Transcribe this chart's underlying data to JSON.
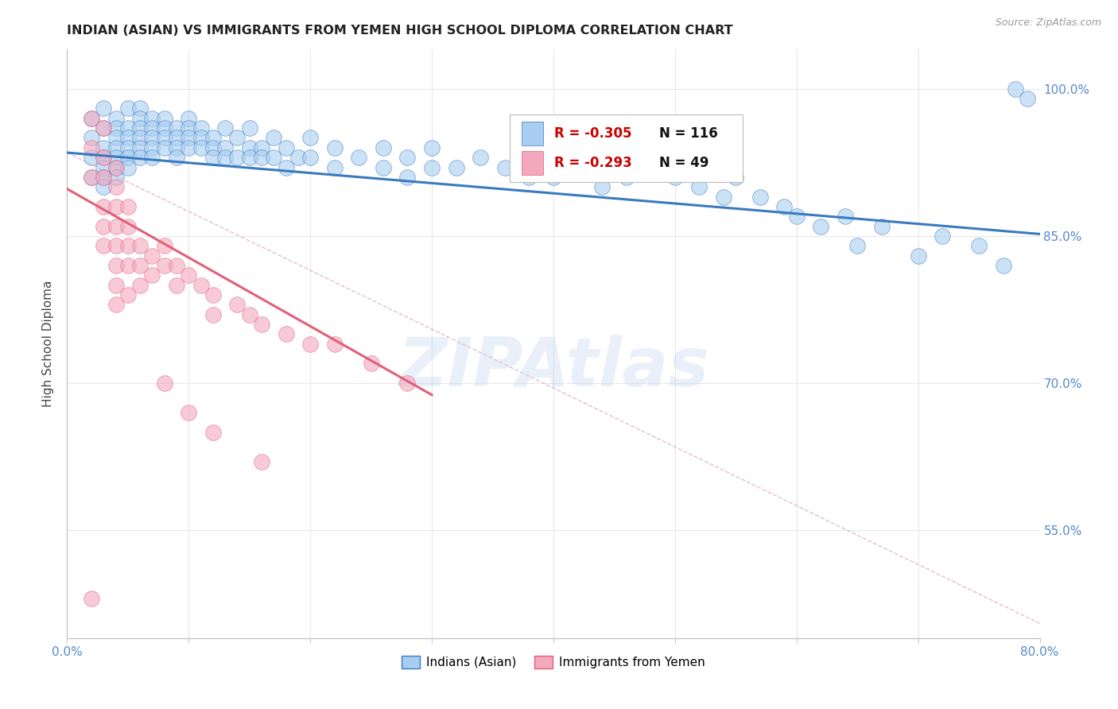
{
  "title": "INDIAN (ASIAN) VS IMMIGRANTS FROM YEMEN HIGH SCHOOL DIPLOMA CORRELATION CHART",
  "source_text": "Source: ZipAtlas.com",
  "ylabel": "High School Diploma",
  "watermark": "ZIPAtlas",
  "xlim": [
    0.0,
    0.8
  ],
  "ylim": [
    0.44,
    1.04
  ],
  "xticks": [
    0.0,
    0.1,
    0.2,
    0.3,
    0.4,
    0.5,
    0.6,
    0.7,
    0.8
  ],
  "yticks_right": [
    0.55,
    0.7,
    0.85,
    1.0
  ],
  "yticklabels_right": [
    "55.0%",
    "70.0%",
    "85.0%",
    "100.0%"
  ],
  "legend_r1": "R = -0.305",
  "legend_n1": "N = 116",
  "legend_r2": "R = -0.293",
  "legend_n2": "N = 49",
  "blue_color": "#A8CDF0",
  "pink_color": "#F4A8BE",
  "blue_line_color": "#3A7ABF",
  "pink_line_color": "#E0607A",
  "dashed_line_color": "#DDAACC",
  "grid_color": "#E8E8E8",
  "title_color": "#222222",
  "axis_label_color": "#444444",
  "tick_color": "#5588CC",
  "blue_scatter": [
    [
      0.02,
      0.97
    ],
    [
      0.02,
      0.95
    ],
    [
      0.02,
      0.93
    ],
    [
      0.02,
      0.91
    ],
    [
      0.03,
      0.98
    ],
    [
      0.03,
      0.96
    ],
    [
      0.03,
      0.94
    ],
    [
      0.03,
      0.93
    ],
    [
      0.03,
      0.92
    ],
    [
      0.03,
      0.91
    ],
    [
      0.03,
      0.9
    ],
    [
      0.04,
      0.97
    ],
    [
      0.04,
      0.96
    ],
    [
      0.04,
      0.95
    ],
    [
      0.04,
      0.94
    ],
    [
      0.04,
      0.93
    ],
    [
      0.04,
      0.92
    ],
    [
      0.04,
      0.91
    ],
    [
      0.05,
      0.98
    ],
    [
      0.05,
      0.96
    ],
    [
      0.05,
      0.95
    ],
    [
      0.05,
      0.94
    ],
    [
      0.05,
      0.93
    ],
    [
      0.05,
      0.92
    ],
    [
      0.06,
      0.98
    ],
    [
      0.06,
      0.97
    ],
    [
      0.06,
      0.96
    ],
    [
      0.06,
      0.95
    ],
    [
      0.06,
      0.94
    ],
    [
      0.06,
      0.93
    ],
    [
      0.07,
      0.97
    ],
    [
      0.07,
      0.96
    ],
    [
      0.07,
      0.95
    ],
    [
      0.07,
      0.94
    ],
    [
      0.07,
      0.93
    ],
    [
      0.08,
      0.97
    ],
    [
      0.08,
      0.96
    ],
    [
      0.08,
      0.95
    ],
    [
      0.08,
      0.94
    ],
    [
      0.09,
      0.96
    ],
    [
      0.09,
      0.95
    ],
    [
      0.09,
      0.94
    ],
    [
      0.09,
      0.93
    ],
    [
      0.1,
      0.97
    ],
    [
      0.1,
      0.96
    ],
    [
      0.1,
      0.95
    ],
    [
      0.1,
      0.94
    ],
    [
      0.11,
      0.96
    ],
    [
      0.11,
      0.95
    ],
    [
      0.11,
      0.94
    ],
    [
      0.12,
      0.95
    ],
    [
      0.12,
      0.94
    ],
    [
      0.12,
      0.93
    ],
    [
      0.13,
      0.96
    ],
    [
      0.13,
      0.94
    ],
    [
      0.13,
      0.93
    ],
    [
      0.14,
      0.95
    ],
    [
      0.14,
      0.93
    ],
    [
      0.15,
      0.96
    ],
    [
      0.15,
      0.94
    ],
    [
      0.15,
      0.93
    ],
    [
      0.16,
      0.94
    ],
    [
      0.16,
      0.93
    ],
    [
      0.17,
      0.95
    ],
    [
      0.17,
      0.93
    ],
    [
      0.18,
      0.94
    ],
    [
      0.18,
      0.92
    ],
    [
      0.19,
      0.93
    ],
    [
      0.2,
      0.95
    ],
    [
      0.2,
      0.93
    ],
    [
      0.22,
      0.94
    ],
    [
      0.22,
      0.92
    ],
    [
      0.24,
      0.93
    ],
    [
      0.26,
      0.94
    ],
    [
      0.26,
      0.92
    ],
    [
      0.28,
      0.93
    ],
    [
      0.28,
      0.91
    ],
    [
      0.3,
      0.94
    ],
    [
      0.3,
      0.92
    ],
    [
      0.32,
      0.92
    ],
    [
      0.34,
      0.93
    ],
    [
      0.36,
      0.92
    ],
    [
      0.38,
      0.91
    ],
    [
      0.4,
      0.93
    ],
    [
      0.4,
      0.91
    ],
    [
      0.42,
      0.92
    ],
    [
      0.44,
      0.93
    ],
    [
      0.44,
      0.9
    ],
    [
      0.46,
      0.91
    ],
    [
      0.48,
      0.92
    ],
    [
      0.5,
      0.91
    ],
    [
      0.52,
      0.9
    ],
    [
      0.54,
      0.89
    ],
    [
      0.55,
      0.91
    ],
    [
      0.57,
      0.89
    ],
    [
      0.59,
      0.88
    ],
    [
      0.6,
      0.87
    ],
    [
      0.62,
      0.86
    ],
    [
      0.64,
      0.87
    ],
    [
      0.65,
      0.84
    ],
    [
      0.67,
      0.86
    ],
    [
      0.7,
      0.83
    ],
    [
      0.72,
      0.85
    ],
    [
      0.75,
      0.84
    ],
    [
      0.77,
      0.82
    ],
    [
      0.78,
      1.0
    ],
    [
      0.79,
      0.99
    ]
  ],
  "pink_scatter": [
    [
      0.02,
      0.97
    ],
    [
      0.02,
      0.94
    ],
    [
      0.02,
      0.91
    ],
    [
      0.03,
      0.96
    ],
    [
      0.03,
      0.93
    ],
    [
      0.03,
      0.91
    ],
    [
      0.03,
      0.88
    ],
    [
      0.03,
      0.86
    ],
    [
      0.03,
      0.84
    ],
    [
      0.04,
      0.92
    ],
    [
      0.04,
      0.9
    ],
    [
      0.04,
      0.88
    ],
    [
      0.04,
      0.86
    ],
    [
      0.04,
      0.84
    ],
    [
      0.04,
      0.82
    ],
    [
      0.04,
      0.8
    ],
    [
      0.04,
      0.78
    ],
    [
      0.05,
      0.88
    ],
    [
      0.05,
      0.86
    ],
    [
      0.05,
      0.84
    ],
    [
      0.05,
      0.82
    ],
    [
      0.05,
      0.79
    ],
    [
      0.06,
      0.84
    ],
    [
      0.06,
      0.82
    ],
    [
      0.06,
      0.8
    ],
    [
      0.07,
      0.83
    ],
    [
      0.07,
      0.81
    ],
    [
      0.08,
      0.84
    ],
    [
      0.08,
      0.82
    ],
    [
      0.09,
      0.82
    ],
    [
      0.09,
      0.8
    ],
    [
      0.1,
      0.81
    ],
    [
      0.11,
      0.8
    ],
    [
      0.12,
      0.79
    ],
    [
      0.12,
      0.77
    ],
    [
      0.14,
      0.78
    ],
    [
      0.15,
      0.77
    ],
    [
      0.16,
      0.76
    ],
    [
      0.18,
      0.75
    ],
    [
      0.2,
      0.74
    ],
    [
      0.22,
      0.74
    ],
    [
      0.25,
      0.72
    ],
    [
      0.28,
      0.7
    ],
    [
      0.08,
      0.7
    ],
    [
      0.1,
      0.67
    ],
    [
      0.12,
      0.65
    ],
    [
      0.16,
      0.62
    ],
    [
      0.02,
      0.48
    ]
  ],
  "blue_trendline_x": [
    0.0,
    0.8
  ],
  "blue_trendline_y": [
    0.935,
    0.852
  ],
  "pink_trendline_x": [
    0.0,
    0.3
  ],
  "pink_trendline_y": [
    0.898,
    0.688
  ],
  "dashed_line_x": [
    0.0,
    0.8
  ],
  "dashed_line_y": [
    0.935,
    0.455
  ]
}
